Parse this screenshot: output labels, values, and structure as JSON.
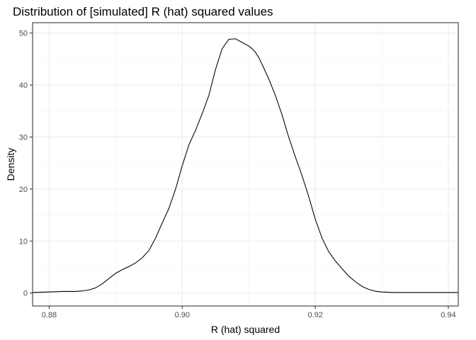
{
  "chart_data": {
    "type": "line",
    "title": "Distribution of [simulated] R (hat) squared values",
    "xlabel": "R (hat) squared",
    "ylabel": "Density",
    "xlim": [
      0.8775,
      0.9415
    ],
    "ylim": [
      -2.5,
      52
    ],
    "x_ticks": [
      0.88,
      0.9,
      0.92,
      0.94
    ],
    "x_tick_labels": [
      "0.88",
      "0.90",
      "0.92",
      "0.94"
    ],
    "y_ticks": [
      0,
      10,
      20,
      30,
      40,
      50
    ],
    "y_tick_labels": [
      "0",
      "10",
      "20",
      "30",
      "40",
      "50"
    ],
    "grid": true,
    "series": [
      {
        "x": [
          0.8775,
          0.88,
          0.882,
          0.884,
          0.885,
          0.886,
          0.887,
          0.888,
          0.889,
          0.89,
          0.891,
          0.892,
          0.893,
          0.894,
          0.895,
          0.896,
          0.897,
          0.898,
          0.899,
          0.9,
          0.901,
          0.902,
          0.903,
          0.904,
          0.905,
          0.906,
          0.907,
          0.908,
          0.909,
          0.91,
          0.9105,
          0.911,
          0.9115,
          0.912,
          0.913,
          0.914,
          0.915,
          0.916,
          0.917,
          0.918,
          0.919,
          0.92,
          0.921,
          0.922,
          0.923,
          0.924,
          0.925,
          0.926,
          0.927,
          0.928,
          0.929,
          0.93,
          0.931,
          0.932,
          0.933,
          0.934,
          0.935,
          0.937,
          0.939,
          0.9415
        ],
        "y": [
          0.1,
          0.2,
          0.3,
          0.3,
          0.4,
          0.6,
          1.0,
          1.8,
          2.8,
          3.8,
          4.5,
          5.1,
          5.8,
          6.8,
          8.2,
          10.6,
          13.5,
          16.3,
          20.0,
          24.5,
          28.5,
          31.3,
          34.5,
          38.0,
          43.0,
          47.0,
          48.8,
          48.9,
          48.2,
          47.5,
          47.0,
          46.3,
          45.3,
          44.0,
          41.2,
          38.0,
          34.3,
          30.0,
          26.2,
          22.6,
          18.6,
          14.2,
          10.6,
          8.0,
          6.2,
          4.7,
          3.3,
          2.2,
          1.3,
          0.7,
          0.35,
          0.2,
          0.15,
          0.1,
          0.1,
          0.1,
          0.1,
          0.1,
          0.1,
          0.1
        ]
      }
    ]
  }
}
